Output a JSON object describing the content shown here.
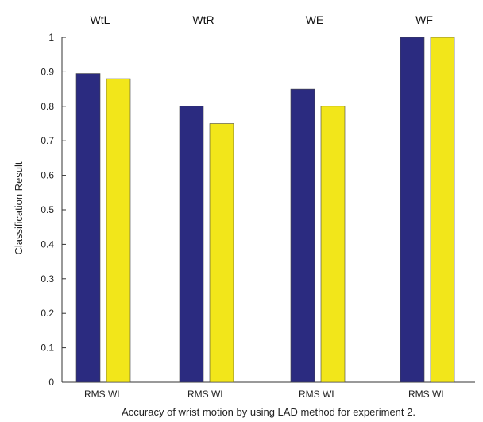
{
  "chart_data": {
    "type": "bar",
    "categories": [
      "WtL",
      "WtR",
      "WE",
      "WF"
    ],
    "series": [
      {
        "name": "RMS",
        "values": [
          0.895,
          0.8,
          0.85,
          1.0
        ],
        "color": "#2b2b80"
      },
      {
        "name": "WL",
        "values": [
          0.88,
          0.75,
          0.8,
          1.0
        ],
        "color": "#f2e61a"
      }
    ],
    "bar_labels": [
      "RMS",
      "WL"
    ],
    "ylabel": "Classification Result",
    "xlabel": "Accuracy of wrist motion by using LAD method for experiment 2.",
    "ylim": [
      0,
      1
    ],
    "yticks": [
      0,
      0.1,
      0.2,
      0.3,
      0.4,
      0.5,
      0.6,
      0.7,
      0.8,
      0.9,
      1
    ],
    "grid": false,
    "legend": "none"
  }
}
